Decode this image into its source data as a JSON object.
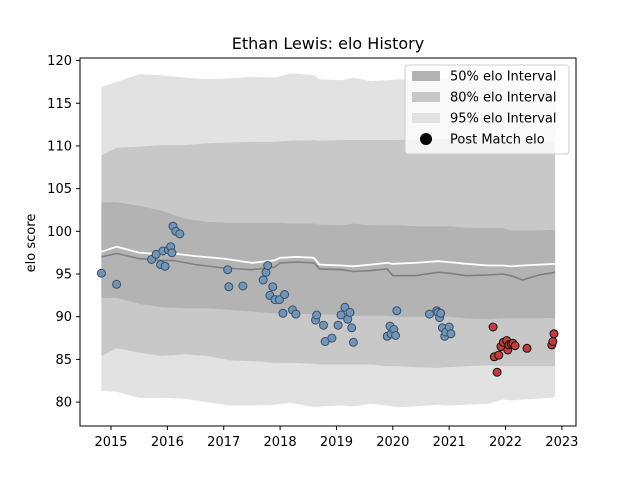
{
  "chart_data": {
    "type": "scatter",
    "title": "Ethan Lewis: elo History",
    "xlabel": "",
    "ylabel": "elo score",
    "xlim": [
      2014.45,
      2023.25
    ],
    "ylim": [
      77.2,
      120.3
    ],
    "x_ticks": [
      2015,
      2016,
      2017,
      2018,
      2019,
      2020,
      2021,
      2022,
      2023
    ],
    "x_tick_labels": [
      "2015",
      "2016",
      "2017",
      "2018",
      "2019",
      "2020",
      "2021",
      "2022",
      "2023"
    ],
    "y_ticks": [
      80,
      85,
      90,
      95,
      100,
      105,
      110,
      115,
      120
    ],
    "y_tick_labels": [
      "80",
      "85",
      "90",
      "95",
      "100",
      "105",
      "110",
      "115",
      "120"
    ],
    "grid": false,
    "legend_position": "top-right",
    "legend": [
      {
        "label": "50% elo Interval",
        "kind": "band",
        "color": "#b3b3b3"
      },
      {
        "label": "80% elo Interval",
        "kind": "band",
        "color": "#c8c8c8"
      },
      {
        "label": "95% elo Interval",
        "kind": "band",
        "color": "#e2e2e2"
      },
      {
        "label": "Post Match elo",
        "kind": "marker",
        "color": "#000000"
      }
    ],
    "band_x": [
      2014.83,
      2015.1,
      2015.5,
      2015.9,
      2016.3,
      2016.7,
      2017.1,
      2017.5,
      2017.9,
      2018.2,
      2018.6,
      2018.7,
      2019.1,
      2019.3,
      2019.6,
      2019.9,
      2020.1,
      2020.4,
      2020.8,
      2021.0,
      2021.3,
      2021.7,
      2021.95,
      2022.1,
      2022.3,
      2022.6,
      2022.88
    ],
    "bands": {
      "p95": {
        "upper": [
          116.9,
          117.5,
          118.4,
          118.3,
          118.0,
          117.8,
          117.9,
          118.1,
          118.0,
          118.5,
          118.3,
          117.8,
          117.7,
          118.0,
          117.6,
          117.7,
          117.8,
          117.6,
          117.9,
          117.9,
          117.6,
          117.8,
          117.1,
          117.4,
          116.6,
          117.2,
          117.8
        ],
        "lower": [
          81.3,
          81.2,
          80.5,
          80.5,
          80.4,
          80.0,
          79.6,
          79.6,
          79.7,
          79.9,
          79.4,
          79.5,
          79.6,
          79.5,
          79.8,
          79.6,
          79.4,
          79.5,
          79.7,
          79.6,
          79.7,
          79.8,
          80.3,
          80.2,
          80.3,
          80.4,
          80.6
        ]
      },
      "p80": {
        "upper": [
          108.9,
          109.8,
          109.9,
          110.1,
          110.1,
          110.3,
          110.4,
          110.5,
          110.5,
          110.6,
          110.7,
          110.6,
          110.7,
          110.7,
          110.7,
          110.7,
          110.7,
          110.8,
          110.8,
          110.8,
          110.9,
          110.8,
          111.0,
          110.8,
          110.7,
          110.6,
          110.5
        ],
        "lower": [
          85.4,
          86.3,
          85.8,
          85.4,
          85.6,
          85.4,
          84.9,
          84.8,
          84.6,
          84.6,
          84.5,
          84.4,
          84.4,
          84.4,
          84.4,
          84.2,
          84.2,
          84.1,
          84.0,
          84.1,
          84.2,
          84.3,
          84.2,
          84.2,
          84.2,
          84.2,
          84.2
        ]
      },
      "p50": {
        "upper": [
          103.4,
          103.4,
          103.0,
          102.4,
          101.5,
          101.1,
          101.0,
          101.0,
          101.0,
          100.9,
          100.9,
          100.8,
          100.7,
          100.9,
          100.7,
          100.7,
          100.7,
          100.6,
          100.6,
          100.6,
          100.4,
          100.4,
          100.4,
          100.1,
          100.1,
          100.1,
          100.2
        ],
        "lower": [
          92.2,
          92.2,
          91.5,
          91.1,
          91.0,
          91.0,
          90.8,
          90.6,
          90.4,
          90.4,
          90.3,
          90.3,
          90.2,
          90.1,
          90.1,
          90.1,
          90.0,
          90.0,
          90.0,
          90.0,
          89.8,
          89.7,
          89.8,
          89.8,
          89.8,
          89.8,
          89.9
        ]
      }
    },
    "median_line": {
      "x": [
        2014.83,
        2015.1,
        2015.5,
        2015.9,
        2016.1,
        2016.5,
        2017.0,
        2017.5,
        2017.9,
        2018.0,
        2018.3,
        2018.6,
        2018.7,
        2019.1,
        2019.3,
        2019.6,
        2019.9,
        2020.0,
        2020.4,
        2020.8,
        2021.0,
        2021.3,
        2021.7,
        2021.95,
        2022.1,
        2022.3,
        2022.6,
        2022.88
      ],
      "y": [
        97.0,
        97.4,
        96.8,
        96.6,
        96.6,
        96.1,
        95.7,
        95.5,
        95.8,
        96.3,
        96.4,
        96.3,
        95.6,
        95.5,
        95.3,
        95.4,
        95.6,
        94.8,
        94.8,
        95.2,
        95.1,
        94.8,
        94.9,
        95.0,
        94.8,
        94.3,
        94.9,
        95.2
      ]
    },
    "mean_line": {
      "x": [
        2014.83,
        2015.1,
        2015.5,
        2015.9,
        2016.1,
        2016.5,
        2017.0,
        2017.5,
        2017.9,
        2018.0,
        2018.3,
        2018.6,
        2018.7,
        2019.1,
        2019.3,
        2019.6,
        2019.9,
        2020.0,
        2020.4,
        2020.8,
        2021.0,
        2021.3,
        2021.7,
        2021.95,
        2022.1,
        2022.3,
        2022.6,
        2022.88
      ],
      "y": [
        97.6,
        98.2,
        97.5,
        97.3,
        97.4,
        97.1,
        96.8,
        96.3,
        96.6,
        96.9,
        97.0,
        96.9,
        96.1,
        96.0,
        95.9,
        96.1,
        96.3,
        96.2,
        96.3,
        96.5,
        96.4,
        96.2,
        96.0,
        96.0,
        95.9,
        96.0,
        96.1,
        96.2
      ]
    },
    "series": [
      {
        "marker_color": "#6f96b8",
        "edge_color": "#3d4f66",
        "x": [
          2014.83,
          2015.1,
          2015.72,
          2015.8,
          2015.88,
          2015.92,
          2015.96,
          2016.02,
          2016.06,
          2016.08,
          2016.1,
          2016.15,
          2016.22,
          2017.07,
          2017.09,
          2017.34,
          2017.7,
          2017.75,
          2017.78,
          2017.82,
          2017.87,
          2017.91,
          2017.99,
          2018.05,
          2018.08,
          2018.22,
          2018.28,
          2018.63,
          2018.65,
          2018.77,
          2018.8,
          2018.92,
          2019.03,
          2019.08,
          2019.15,
          2019.2,
          2019.24,
          2019.27,
          2019.3,
          2019.9,
          2019.95,
          2019.97,
          2020.02,
          2020.05,
          2020.07,
          2020.65,
          2020.78,
          2020.8,
          2020.83,
          2020.85,
          2020.88,
          2020.92,
          2020.94,
          2021.0,
          2021.03
        ],
        "y": [
          95.1,
          93.8,
          96.7,
          97.3,
          96.1,
          97.7,
          95.9,
          97.8,
          98.2,
          97.5,
          100.6,
          100.0,
          99.7,
          95.5,
          93.5,
          93.6,
          94.3,
          95.2,
          96.0,
          92.5,
          93.5,
          92.0,
          92.0,
          90.4,
          92.6,
          90.8,
          90.3,
          89.6,
          90.2,
          89.0,
          87.1,
          87.5,
          89.0,
          90.2,
          91.1,
          89.7,
          90.5,
          88.7,
          87.0,
          87.7,
          88.9,
          88.0,
          88.5,
          87.8,
          90.7,
          90.3,
          90.7,
          90.5,
          89.9,
          90.4,
          88.7,
          87.7,
          88.2,
          88.8,
          88.0
        ]
      },
      {
        "marker_color": "#c43c3c",
        "edge_color": "#111111",
        "x": [
          2021.78,
          2021.8,
          2021.85,
          2021.88,
          2021.92,
          2021.96,
          2022.02,
          2022.04,
          2022.06,
          2022.1,
          2022.13,
          2022.17,
          2022.38,
          2022.82,
          2022.84,
          2022.86
        ],
        "y": [
          88.8,
          85.3,
          83.5,
          85.5,
          86.5,
          87.0,
          87.2,
          86.1,
          86.7,
          86.8,
          86.9,
          86.6,
          86.3,
          86.7,
          87.1,
          88.0
        ]
      }
    ]
  }
}
